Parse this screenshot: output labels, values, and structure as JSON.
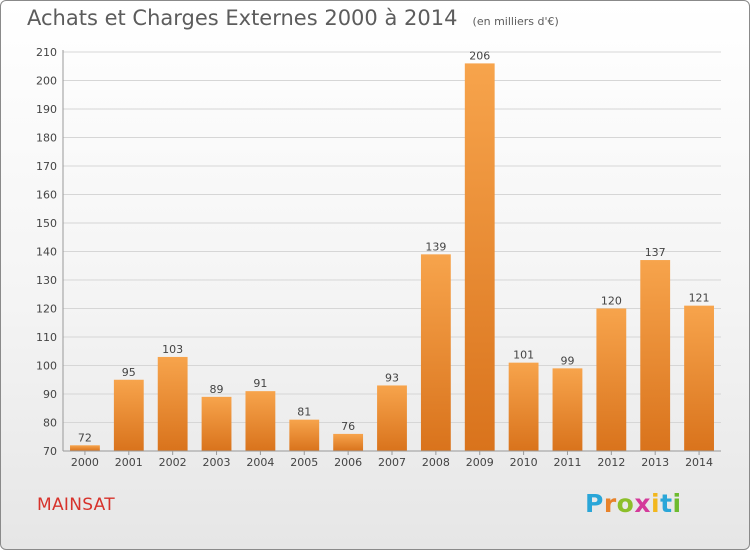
{
  "header": {
    "title": "Achats et Charges Externes 2000 à 2014",
    "subtitle": "(en milliers d'€)"
  },
  "place_name": "MAINSAT",
  "logo": {
    "text": "Proxiti",
    "colors": [
      "#2aa6d8",
      "#e8822a",
      "#8cbf2a",
      "#d43a9a",
      "#f2b71e",
      "#2aa6d8",
      "#6dbb2f"
    ]
  },
  "chart_data": {
    "type": "bar",
    "title": "Achats et Charges Externes 2000 à 2014",
    "subtitle": "(en milliers d'€)",
    "categories": [
      "2000",
      "2001",
      "2002",
      "2003",
      "2004",
      "2005",
      "2006",
      "2007",
      "2008",
      "2009",
      "2010",
      "2011",
      "2012",
      "2013",
      "2014"
    ],
    "values": [
      72,
      95,
      103,
      89,
      91,
      81,
      76,
      93,
      139,
      206,
      101,
      99,
      120,
      137,
      121
    ],
    "ylim": [
      70,
      210
    ],
    "yticks": [
      70,
      80,
      90,
      100,
      110,
      120,
      130,
      140,
      150,
      160,
      170,
      180,
      190,
      200,
      210
    ],
    "grid": true,
    "bar_color": "#f0983a",
    "xlabel": "",
    "ylabel": ""
  }
}
